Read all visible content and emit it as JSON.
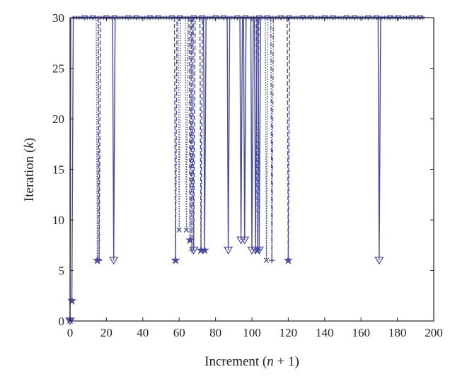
{
  "chart_data": {
    "type": "line",
    "title": "",
    "xlabel_main": "Increment (",
    "xlabel_var": "n",
    "xlabel_rest": " + 1)",
    "ylabel_main": "Iteration (",
    "ylabel_var": "k",
    "ylabel_rest": ")",
    "xlim": [
      0,
      200
    ],
    "ylim": [
      0,
      30
    ],
    "xticks": [
      "0",
      "20",
      "40",
      "60",
      "80",
      "100",
      "120",
      "140",
      "160",
      "180",
      "200"
    ],
    "yticks": [
      "0",
      "5",
      "10",
      "15",
      "20",
      "25",
      "30"
    ],
    "grid": false,
    "color": "#4a4aa8",
    "max_iteration": 30,
    "x_end": 195,
    "start_points": [
      [
        0,
        0
      ],
      [
        1,
        2
      ]
    ],
    "drops": [
      {
        "x": 15,
        "y": 6,
        "marker": "star",
        "style": "dotted"
      },
      {
        "x": 16,
        "y": 6,
        "marker": "plus",
        "style": "dashed"
      },
      {
        "x": 24,
        "y": 6,
        "marker": "triangle-down",
        "style": "solid"
      },
      {
        "x": 58,
        "y": 6,
        "marker": "star",
        "style": "dashed"
      },
      {
        "x": 60,
        "y": 9,
        "marker": "cross",
        "style": "dotted"
      },
      {
        "x": 64,
        "y": 9,
        "marker": "cross",
        "style": "dotted"
      },
      {
        "x": 66,
        "y": 8,
        "marker": "star",
        "style": "dashed"
      },
      {
        "x": 67,
        "y": 7,
        "marker": "plus",
        "style": "dashdot"
      },
      {
        "x": 68,
        "y": 7,
        "marker": "triangle-down",
        "style": "dashed"
      },
      {
        "x": 72,
        "y": 7,
        "marker": "star",
        "style": "dashed"
      },
      {
        "x": 74,
        "y": 7,
        "marker": "star",
        "style": "solid"
      },
      {
        "x": 87,
        "y": 7,
        "marker": "triangle-down",
        "style": "solid"
      },
      {
        "x": 94,
        "y": 8,
        "marker": "triangle-down",
        "style": "solid"
      },
      {
        "x": 96,
        "y": 8,
        "marker": "triangle-down",
        "style": "solid"
      },
      {
        "x": 100,
        "y": 7,
        "marker": "triangle-down",
        "style": "solid"
      },
      {
        "x": 102,
        "y": 7,
        "marker": "triangle-down",
        "style": "solid"
      },
      {
        "x": 103,
        "y": 7,
        "marker": "star",
        "style": "dashed"
      },
      {
        "x": 104,
        "y": 7,
        "marker": "triangle-down",
        "style": "solid"
      },
      {
        "x": 108,
        "y": 6,
        "marker": "cross",
        "style": "dotted"
      },
      {
        "x": 111,
        "y": 6,
        "marker": "plus",
        "style": "dashdot"
      },
      {
        "x": 120,
        "y": 6,
        "marker": "star",
        "style": "dashed"
      },
      {
        "x": 170,
        "y": 6,
        "marker": "triangle-down",
        "style": "solid"
      }
    ]
  }
}
